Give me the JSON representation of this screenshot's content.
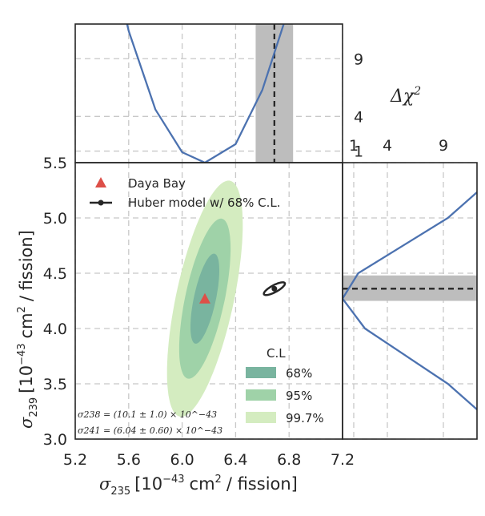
{
  "chart_data": [
    {
      "panel": "main",
      "type": "scatter",
      "xlabel_sym": "σ",
      "xlabel_sub": "235",
      "xlabel_rest": "[10",
      "xlabel_exp": "−43",
      "xlabel_unit": "cm",
      "xlabel_unit_exp": "2",
      "xlabel_tail": "/ fission]",
      "ylabel_sym": "σ",
      "ylabel_sub": "239",
      "ylabel_rest": "[10",
      "ylabel_exp": "−43",
      "ylabel_unit": "cm",
      "ylabel_unit_exp": "2",
      "ylabel_tail": "/ fission]",
      "xlim": [
        5.2,
        7.2
      ],
      "ylim": [
        3.0,
        5.5
      ],
      "xticks": [
        "5.2",
        "5.6",
        "6.0",
        "6.4",
        "6.8",
        "7.2"
      ],
      "yticks": [
        "3.0",
        "3.5",
        "4.0",
        "4.5",
        "5.0",
        "5.5"
      ],
      "grid": true,
      "legend_placement": "top-left",
      "legend": [
        "Daya Bay",
        "Huber model w/ 68% C.L."
      ],
      "daya_bay_point": {
        "x": 6.17,
        "y": 4.27
      },
      "huber_point": {
        "x": 6.69,
        "y": 4.36
      },
      "huber_contour": {
        "cx": 6.69,
        "cy": 4.36,
        "a": 0.155,
        "b": 0.05,
        "angle_deg": 34
      },
      "contours": [
        {
          "level": "99.7%",
          "cx": 6.17,
          "cy": 4.27,
          "a": 1.18,
          "b": 0.5,
          "angle_deg": 62
        },
        {
          "level": "95%",
          "cx": 6.17,
          "cy": 4.27,
          "a": 0.8,
          "b": 0.34,
          "angle_deg": 62
        },
        {
          "level": "68%",
          "cx": 6.17,
          "cy": 4.27,
          "a": 0.45,
          "b": 0.19,
          "angle_deg": 62
        }
      ],
      "cl_legend_title": "C.L",
      "cl_legend": [
        "68%",
        "95%",
        "99.7%"
      ],
      "annotation_238": "σ238 = (10.1 ± 1.0) × 10^−43",
      "annotation_241": "σ241 = (6.04 ± 0.60) × 10^−43"
    },
    {
      "panel": "top",
      "type": "line",
      "x_range": [
        5.2,
        7.2
      ],
      "y_range": [
        0,
        12
      ],
      "yticks": [
        "1",
        "4",
        "9"
      ],
      "series": [
        {
          "x": [
            5.4,
            5.6,
            5.8,
            6.0,
            6.17,
            6.4,
            6.6,
            6.76
          ],
          "y": [
            21.2,
            11.4,
            4.6,
            0.9,
            0.0,
            1.6,
            6.3,
            12.0
          ]
        }
      ],
      "best_fit_x": 6.69,
      "band": [
        6.55,
        6.83
      ]
    },
    {
      "panel": "right",
      "type": "line",
      "x_range": [
        0,
        12
      ],
      "y_range": [
        3.0,
        5.5
      ],
      "xticks": [
        "1",
        "4",
        "9"
      ],
      "series": [
        {
          "y": [
            3.0,
            3.5,
            4.0,
            4.27,
            4.5,
            5.0,
            5.5
          ],
          "x": [
            15.0,
            9.4,
            2.0,
            0.0,
            1.4,
            9.4,
            15.0
          ]
        }
      ],
      "best_fit_y": 4.36,
      "band": [
        4.25,
        4.48
      ]
    }
  ],
  "right_axis_label": "Δχ",
  "right_axis_label_exp": "2",
  "colors": {
    "c997": "#d4ecc0",
    "c95": "#9fd2a8",
    "c68": "#79b49f",
    "curve": "#4c72b0",
    "daya": "#dd4f48",
    "huber": "#262626",
    "band": "#bdbdbd"
  }
}
